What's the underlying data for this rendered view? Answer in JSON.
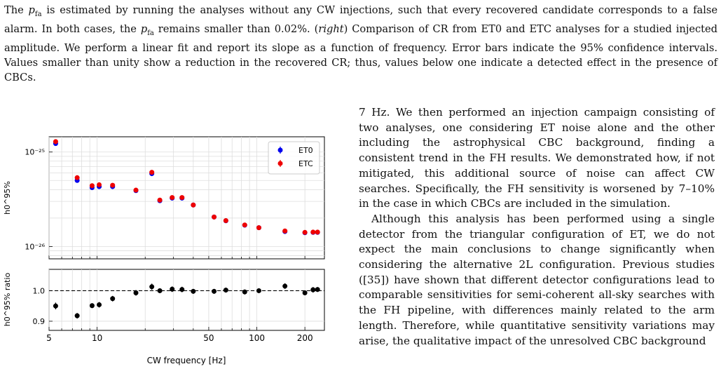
{
  "caption": {
    "part1": "The ",
    "pfa_sym": "p",
    "pfa_sub": "fa",
    "part2": " is estimated by running the analyses without any CW injections, such that every recovered candidate corresponds to a false alarm. In both cases, the ",
    "part3": " remains smaller than 0.02%. (",
    "right_word": "right",
    "part4": ") Comparison of CR from ET0 and ETC analyses for a studied injected amplitude. We perform a linear fit and report its slope as a function of frequency. Error bars indicate the 95% confidence intervals. Values smaller than unity show a reduction in the recovered CR; thus, values below one indicate a detected effect in the presence of CBCs."
  },
  "body": {
    "para1": "7 Hz. We then performed an injection campaign consisting of two analyses, one considering ET noise alone and the other including the astrophysical CBC background, finding a consistent trend in the FH results. We demonstrated how, if not mitigated, this additional source of noise can affect CW searches. Specifically, the FH sensitivity is worsened by 7–10% in the case in which CBCs are included in the simulation.",
    "para2": "Although this analysis has been performed using a single detector from the triangular configuration of ET, we do not expect the main conclusions to change significantly when considering the alternative 2L configuration. Previous studies ([35]) have shown that different detector configurations lead to comparable sensitivities for semi-coherent all-sky searches with the FH pipeline, with differences mainly related to the arm length. Therefore, while quantitative sensitivity variations may arise, the qualitative impact of the unresolved CBC background"
  },
  "chart_data": [
    {
      "type": "scatter",
      "title": "",
      "xlabel": "",
      "ylabel": "h0^95%",
      "xscale": "log",
      "yscale": "log",
      "xlim": [
        5,
        265
      ],
      "ylim": [
        7.4e-27,
        1.45e-25
      ],
      "yticks_labels": [
        "10⁻²⁵",
        "10⁻²⁶"
      ],
      "legend": "top-right",
      "grid": true,
      "x": [
        5.5,
        7.5,
        9.3,
        10.3,
        12.5,
        17.5,
        22.0,
        24.7,
        29.5,
        34.0,
        40.0,
        54.0,
        64.0,
        84.0,
        103.0,
        150.0,
        200.0,
        225.0,
        240.0
      ],
      "series": [
        {
          "name": "ET0",
          "color": "#0000ee",
          "values": [
            1.23e-25,
            5e-26,
            4.2e-26,
            4.3e-26,
            4.3e-26,
            3.9e-26,
            5.9e-26,
            3.05e-26,
            3.25e-26,
            3.25e-26,
            2.75e-26,
            2.05e-26,
            1.87e-26,
            1.68e-26,
            1.58e-26,
            1.44e-26,
            1.4e-26,
            1.41e-26,
            1.41e-26
          ]
        },
        {
          "name": "ETC",
          "color": "#ee0000",
          "values": [
            1.29e-25,
            5.35e-26,
            4.4e-26,
            4.5e-26,
            4.45e-26,
            3.95e-26,
            6.1e-26,
            3.1e-26,
            3.3e-26,
            3.3e-26,
            2.75e-26,
            2.05e-26,
            1.88e-26,
            1.69e-26,
            1.58e-26,
            1.46e-26,
            1.41e-26,
            1.42e-26,
            1.42e-26
          ]
        }
      ]
    },
    {
      "type": "scatter",
      "title": "",
      "xlabel": "CW frequency [Hz]",
      "ylabel": "h0^95% ratio",
      "xscale": "log",
      "xlim": [
        5,
        265
      ],
      "ylim": [
        0.87,
        1.07
      ],
      "yticks": [
        0.9,
        1.0
      ],
      "xticks": [
        5,
        10,
        50,
        100,
        200
      ],
      "grid": true,
      "reference_line": 1.0,
      "x": [
        5.5,
        7.5,
        9.3,
        10.3,
        12.5,
        17.5,
        22.0,
        24.7,
        29.5,
        34.0,
        40.0,
        54.0,
        64.0,
        84.0,
        103.0,
        150.0,
        200.0,
        225.0,
        240.0
      ],
      "values": [
        0.95,
        0.918,
        0.951,
        0.954,
        0.974,
        0.993,
        1.013,
        1.0,
        1.005,
        1.004,
        0.998,
        0.998,
        1.002,
        0.996,
        1.0,
        1.015,
        0.993,
        1.003,
        1.004
      ],
      "errors": [
        0.011,
        0.009,
        0.008,
        0.009,
        0.009,
        0.009,
        0.01,
        0.008,
        0.009,
        0.009,
        0.008,
        0.008,
        0.008,
        0.008,
        0.008,
        0.009,
        0.008,
        0.009,
        0.008
      ],
      "color": "#000000"
    }
  ]
}
